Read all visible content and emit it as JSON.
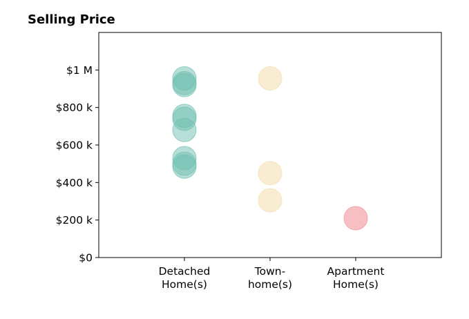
{
  "chart_data": {
    "type": "scatter",
    "title": "Selling Price",
    "xlabel": "",
    "ylabel": "",
    "categories": [
      [
        "Detached",
        "Home(s)"
      ],
      [
        "Town-",
        "home(s)"
      ],
      [
        "Apartment",
        "Home(s)"
      ]
    ],
    "xlim": [
      -1,
      3
    ],
    "ylim": [
      0,
      1200000
    ],
    "yticks": [
      {
        "value": 0,
        "label": "$0"
      },
      {
        "value": 200000,
        "label": "$200 k"
      },
      {
        "value": 400000,
        "label": "$400 k"
      },
      {
        "value": 600000,
        "label": "$600 k"
      },
      {
        "value": 800000,
        "label": "$800 k"
      },
      {
        "value": 1000000,
        "label": "$1 M"
      }
    ],
    "grid": false,
    "legend": "none",
    "series": [
      {
        "category": 0,
        "color": "#6fbfb0",
        "opacity": 0.5,
        "values": [
          955000,
          930000,
          920000,
          755000,
          740000,
          680000,
          530000,
          500000,
          485000
        ]
      },
      {
        "category": 1,
        "color": "#f3e1b4",
        "opacity": 0.6,
        "values": [
          955000,
          450000,
          305000
        ]
      },
      {
        "category": 2,
        "color": "#f29ca5",
        "opacity": 0.65,
        "values": [
          210000
        ]
      }
    ]
  }
}
